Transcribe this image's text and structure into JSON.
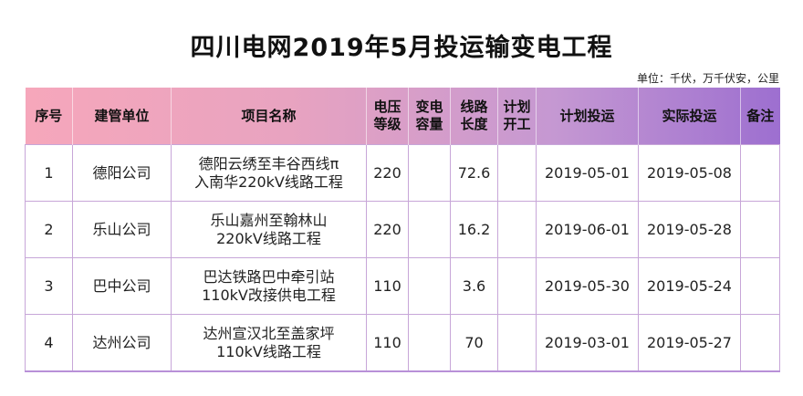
{
  "title": "四川电网2019年5月投运输变电工程",
  "unit_note": "单位：千伏，万千伏安，公里",
  "headers": {
    "seq": "序号",
    "unit": "建管单位",
    "project": "项目名称",
    "voltage": [
      "电压",
      "等级"
    ],
    "capacity": [
      "变电",
      "容量"
    ],
    "length": [
      "线路",
      "长度"
    ],
    "plan_start": [
      "计划",
      "开工"
    ],
    "plan_op": "计划投运",
    "actual_op": "实际投运",
    "remark": "备注"
  },
  "rows": [
    {
      "seq": "1",
      "unit": "德阳公司",
      "project": [
        "德阳云绣至丰谷西线π",
        "入南华220kV线路工程"
      ],
      "voltage": "220",
      "capacity": "",
      "length": "72.6",
      "plan_start": "",
      "plan_op": "2019-05-01",
      "actual_op": "2019-05-08",
      "remark": ""
    },
    {
      "seq": "2",
      "unit": "乐山公司",
      "project": [
        "乐山嘉州至翰林山",
        "220kV线路工程"
      ],
      "voltage": "220",
      "capacity": "",
      "length": "16.2",
      "plan_start": "",
      "plan_op": "2019-06-01",
      "actual_op": "2019-05-28",
      "remark": ""
    },
    {
      "seq": "3",
      "unit": "巴中公司",
      "project": [
        "巴达铁路巴中牵引站",
        "110kV改接供电工程"
      ],
      "voltage": "110",
      "capacity": "",
      "length": "3.6",
      "plan_start": "",
      "plan_op": "2019-05-30",
      "actual_op": "2019-05-24",
      "remark": ""
    },
    {
      "seq": "4",
      "unit": "达州公司",
      "project": [
        "达州宣汉北至盖家坪",
        "110kV线路工程"
      ],
      "voltage": "110",
      "capacity": "",
      "length": "70",
      "plan_start": "",
      "plan_op": "2019-03-01",
      "actual_op": "2019-05-27",
      "remark": ""
    }
  ]
}
